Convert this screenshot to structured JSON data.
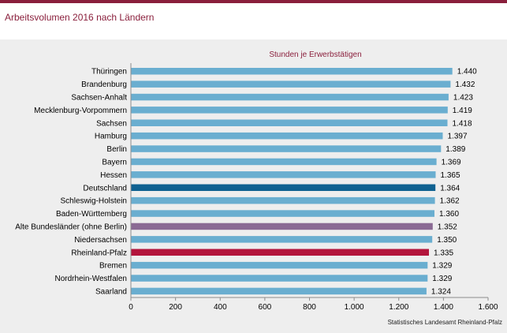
{
  "header": {
    "title": "Arbeitsvolumen 2016 nach Ländern"
  },
  "source": "Statistisches Landesamt Rheinland-Pfalz",
  "chart_data": {
    "type": "bar",
    "orientation": "horizontal",
    "subtitle": "Stunden je Erwerbstätigen",
    "categories": [
      "Thüringen",
      "Brandenburg",
      "Sachsen-Anhalt",
      "Mecklenburg-Vorpommern",
      "Sachsen",
      "Hamburg",
      "Berlin",
      "Bayern",
      "Hessen",
      "Deutschland",
      "Schleswig-Holstein",
      "Baden-Württemberg",
      "Alte Bundesländer (ohne Berlin)",
      "Niedersachsen",
      "Rheinland-Pfalz",
      "Bremen",
      "Nordrhein-Westfalen",
      "Saarland"
    ],
    "values": [
      1440,
      1432,
      1423,
      1419,
      1418,
      1397,
      1389,
      1369,
      1365,
      1364,
      1362,
      1360,
      1352,
      1350,
      1335,
      1329,
      1329,
      1324
    ],
    "value_labels": [
      "1.440",
      "1.432",
      "1.423",
      "1.419",
      "1.418",
      "1.397",
      "1.389",
      "1.369",
      "1.365",
      "1.364",
      "1.362",
      "1.360",
      "1.352",
      "1.350",
      "1.335",
      "1.329",
      "1.329",
      "1.324"
    ],
    "bar_colors": [
      "#6aaed0",
      "#6aaed0",
      "#6aaed0",
      "#6aaed0",
      "#6aaed0",
      "#6aaed0",
      "#6aaed0",
      "#6aaed0",
      "#6aaed0",
      "#0f6191",
      "#6aaed0",
      "#6aaed0",
      "#8a6a94",
      "#6aaed0",
      "#b3153c",
      "#6aaed0",
      "#6aaed0",
      "#6aaed0"
    ],
    "xlim": [
      0,
      1600
    ],
    "x_ticks": [
      0,
      200,
      400,
      600,
      800,
      1000,
      1200,
      1400,
      1600
    ],
    "x_tick_labels": [
      "0",
      "200",
      "400",
      "600",
      "800",
      "1.000",
      "1.200",
      "1.400",
      "1.600"
    ],
    "grid": false,
    "legend": "none"
  }
}
